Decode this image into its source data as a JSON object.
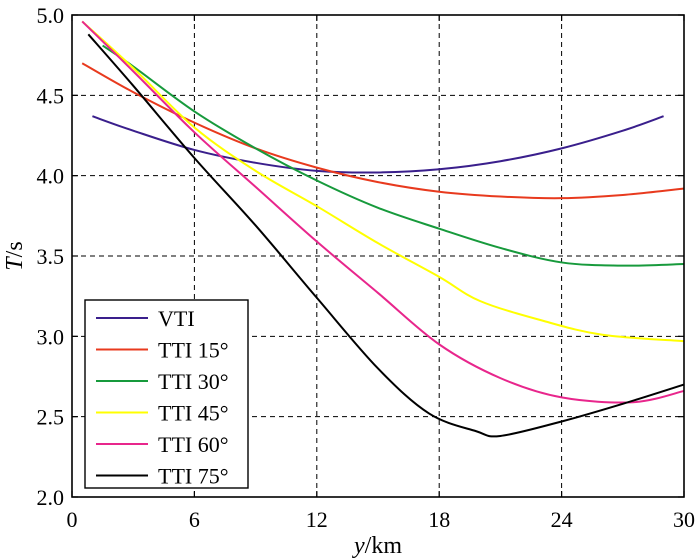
{
  "chart_data": {
    "type": "line",
    "title": "",
    "xlabel_italic": "y",
    "xlabel_unit": "/km",
    "ylabel_italic": "T",
    "ylabel_unit": "/s",
    "xlim": [
      0,
      30
    ],
    "ylim": [
      2.0,
      5.0
    ],
    "xticks": [
      0,
      6,
      12,
      18,
      24,
      30
    ],
    "xtick_labels": [
      "0",
      "6",
      "12",
      "18",
      "24",
      "30"
    ],
    "yticks": [
      2.0,
      2.5,
      3.0,
      3.5,
      4.0,
      4.5,
      5.0
    ],
    "ytick_labels": [
      "2.0",
      "2.5",
      "3.0",
      "3.5",
      "4.0",
      "4.5",
      "5.0"
    ],
    "grid": true,
    "legend_position": "bottom-left",
    "series": [
      {
        "name": "VTI",
        "color": "#3a1f8c",
        "x": [
          1,
          3,
          6,
          9,
          12,
          15,
          18,
          21,
          24,
          27,
          29
        ],
        "y": [
          4.37,
          4.28,
          4.16,
          4.08,
          4.03,
          4.02,
          4.04,
          4.09,
          4.17,
          4.28,
          4.37
        ]
      },
      {
        "name": "TTI 15°",
        "color": "#e83a1e",
        "x": [
          0.5,
          3,
          6,
          9,
          12,
          15,
          18,
          21,
          24,
          27,
          30
        ],
        "y": [
          4.7,
          4.52,
          4.33,
          4.17,
          4.05,
          3.96,
          3.9,
          3.87,
          3.86,
          3.88,
          3.92
        ]
      },
      {
        "name": "TTI 30°",
        "color": "#179a3c",
        "x": [
          1.5,
          3,
          6,
          9,
          12,
          15,
          18,
          21,
          24,
          27,
          30
        ],
        "y": [
          4.81,
          4.68,
          4.4,
          4.17,
          3.97,
          3.8,
          3.67,
          3.55,
          3.46,
          3.44,
          3.45
        ]
      },
      {
        "name": "TTI 45°",
        "color": "#ffff00",
        "x": [
          0.5,
          3,
          6,
          9,
          12,
          15,
          18,
          20,
          23,
          26,
          30
        ],
        "y": [
          4.96,
          4.67,
          4.3,
          4.03,
          3.81,
          3.58,
          3.37,
          3.22,
          3.1,
          3.01,
          2.97
        ]
      },
      {
        "name": "TTI 60°",
        "color": "#e8268c",
        "x": [
          0.5,
          3,
          6,
          9,
          12,
          15,
          18,
          21,
          24,
          27.5,
          30
        ],
        "y": [
          4.96,
          4.65,
          4.27,
          3.93,
          3.59,
          3.27,
          2.95,
          2.74,
          2.62,
          2.59,
          2.66
        ]
      },
      {
        "name": "TTI 75°",
        "color": "#000000",
        "x": [
          0.8,
          3,
          6,
          9,
          12,
          15,
          17.5,
          19.8,
          21,
          24,
          27,
          30
        ],
        "y": [
          4.88,
          4.56,
          4.11,
          3.69,
          3.24,
          2.8,
          2.52,
          2.41,
          2.38,
          2.47,
          2.58,
          2.7
        ]
      }
    ]
  }
}
